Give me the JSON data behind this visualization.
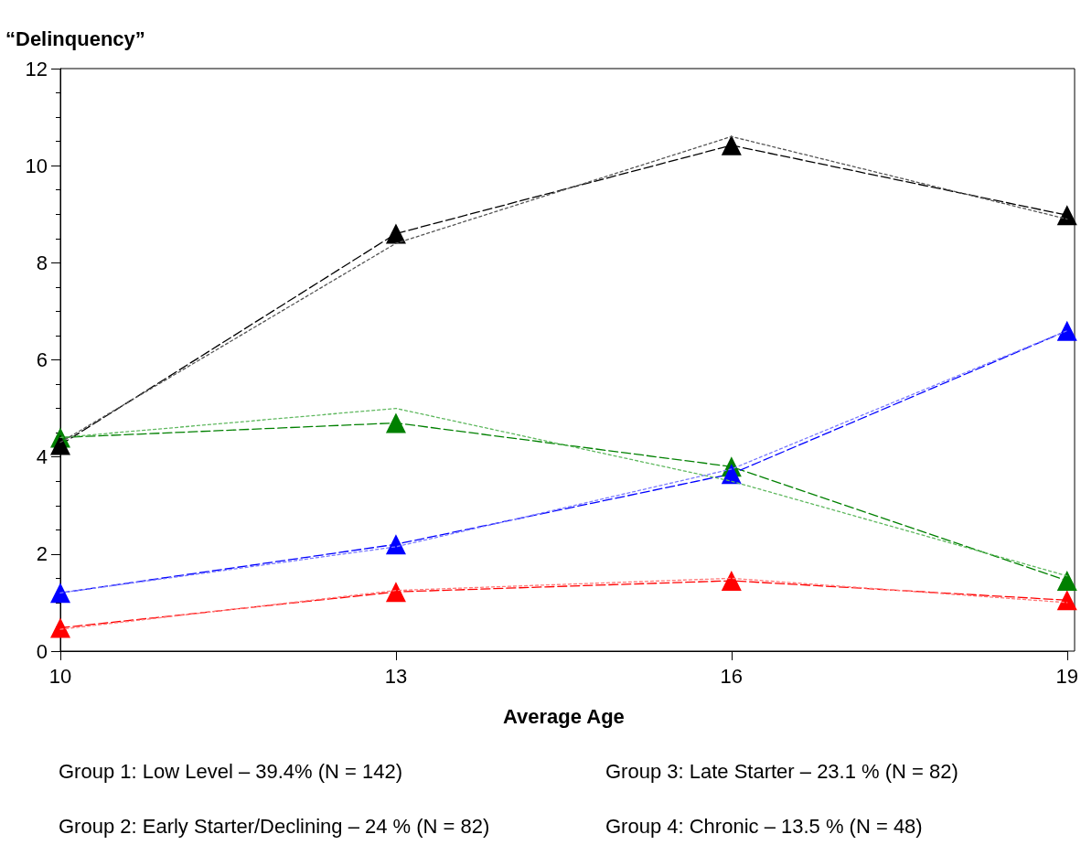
{
  "chart_data": {
    "type": "line",
    "ylabel": "“Delinquency”",
    "xlabel": "Average Age",
    "categories": [
      "10",
      "13",
      "16",
      "19"
    ],
    "ylim": [
      0,
      12
    ],
    "yticks": [
      0,
      2,
      4,
      6,
      8,
      10,
      12
    ],
    "grid": false,
    "series": [
      {
        "color": "#ff0000",
        "line_style": "dashed",
        "marker": "triangle",
        "values": [
          0.48,
          1.22,
          1.45,
          1.05
        ]
      },
      {
        "color": "#ff7a7a",
        "line_style": "dotted",
        "marker": "none",
        "values": [
          0.45,
          1.25,
          1.5,
          1.0
        ]
      },
      {
        "color": "#008000",
        "line_style": "dashed",
        "marker": "triangle",
        "values": [
          4.4,
          4.7,
          3.8,
          1.45
        ]
      },
      {
        "color": "#5fb85f",
        "line_style": "dotted",
        "marker": "none",
        "values": [
          4.4,
          5.0,
          3.5,
          1.55
        ]
      },
      {
        "color": "#0000ff",
        "line_style": "dashed",
        "marker": "triangle",
        "values": [
          1.2,
          2.2,
          3.65,
          6.6
        ]
      },
      {
        "color": "#7a7aff",
        "line_style": "dotted",
        "marker": "none",
        "values": [
          1.2,
          2.15,
          3.75,
          6.6
        ]
      },
      {
        "color": "#000000",
        "line_style": "dashed",
        "marker": "triangle",
        "values": [
          4.25,
          8.6,
          10.42,
          8.98
        ]
      },
      {
        "color": "#555555",
        "line_style": "dotted",
        "marker": "none",
        "values": [
          4.3,
          8.4,
          10.6,
          8.9
        ]
      }
    ],
    "annotations": [
      "Group 1: Low Level – 39.4% (N = 142)",
      "Group 3: Late Starter – 23.1 % (N = 82)",
      "Group 2: Early Starter/Declining – 24 % (N = 82)",
      "Group 4: Chronic – 13.5 % (N = 48)"
    ]
  }
}
